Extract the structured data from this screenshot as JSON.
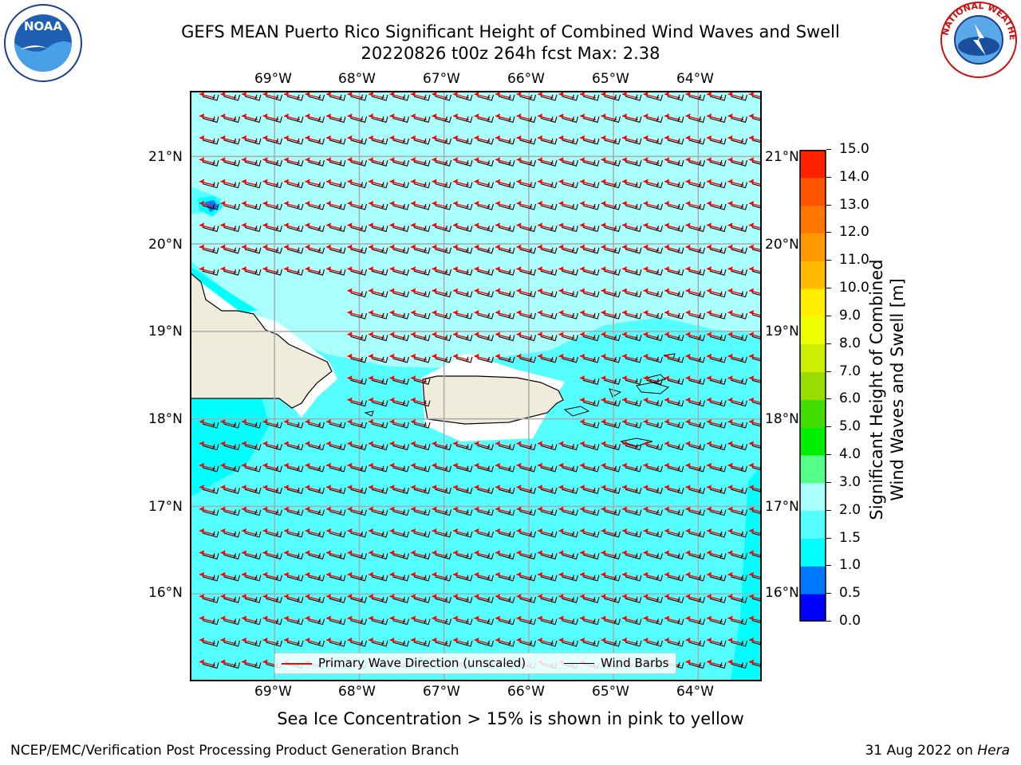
{
  "title": {
    "line1": "GEFS MEAN Puerto Rico Significant Height of Combined Wind Waves and Swell",
    "line2": "20220826 t00z 264h fcst   Max: 2.38"
  },
  "map": {
    "lon_ticks": [
      "69°W",
      "68°W",
      "67°W",
      "66°W",
      "65°W",
      "64°W"
    ],
    "lat_ticks": [
      "21°N",
      "20°N",
      "19°N",
      "18°N",
      "17°N",
      "16°N"
    ],
    "lon_range": [
      -70.0,
      -63.25
    ],
    "lat_range": [
      15.0,
      21.75
    ],
    "wave_direction": "toward west-northwest",
    "land_color": "#efecdc",
    "max_wave_height_m": 2.38
  },
  "legend": {
    "primary_label": "Primary Wave Direction (unscaled)",
    "primary_color": "#ff0000",
    "barbs_label": "Wind Barbs",
    "barbs_color": "#000000"
  },
  "colorbar": {
    "label_line1": "Significant Height of Combined",
    "label_line2": "Wind Waves and Swell [m]",
    "ticks": [
      "0.0",
      "0.5",
      "1.0",
      "1.5",
      "2.0",
      "3.0",
      "4.0",
      "5.0",
      "6.0",
      "7.0",
      "8.0",
      "9.0",
      "10.0",
      "11.0",
      "12.0",
      "13.0",
      "14.0",
      "15.0"
    ],
    "colors": [
      "#0000ff",
      "#0077ff",
      "#00ffff",
      "#55ffff",
      "#aaffff",
      "#55ff88",
      "#00ee00",
      "#44dd00",
      "#99dd00",
      "#ccee00",
      "#eeff00",
      "#ffee00",
      "#ffbb00",
      "#ff9900",
      "#ff7700",
      "#ff5500",
      "#ff2200"
    ]
  },
  "footer": {
    "caption": "Sea Ice Concentration > 15% is shown in pink to yellow",
    "left": "NCEP/EMC/Verification Post Processing Product Generation Branch",
    "date": "31 Aug 2022 on ",
    "machine": "Hera"
  },
  "logos": {
    "noaa_text": "NOAA",
    "nws_text": "NATIONAL WEATHER SERVICE"
  }
}
